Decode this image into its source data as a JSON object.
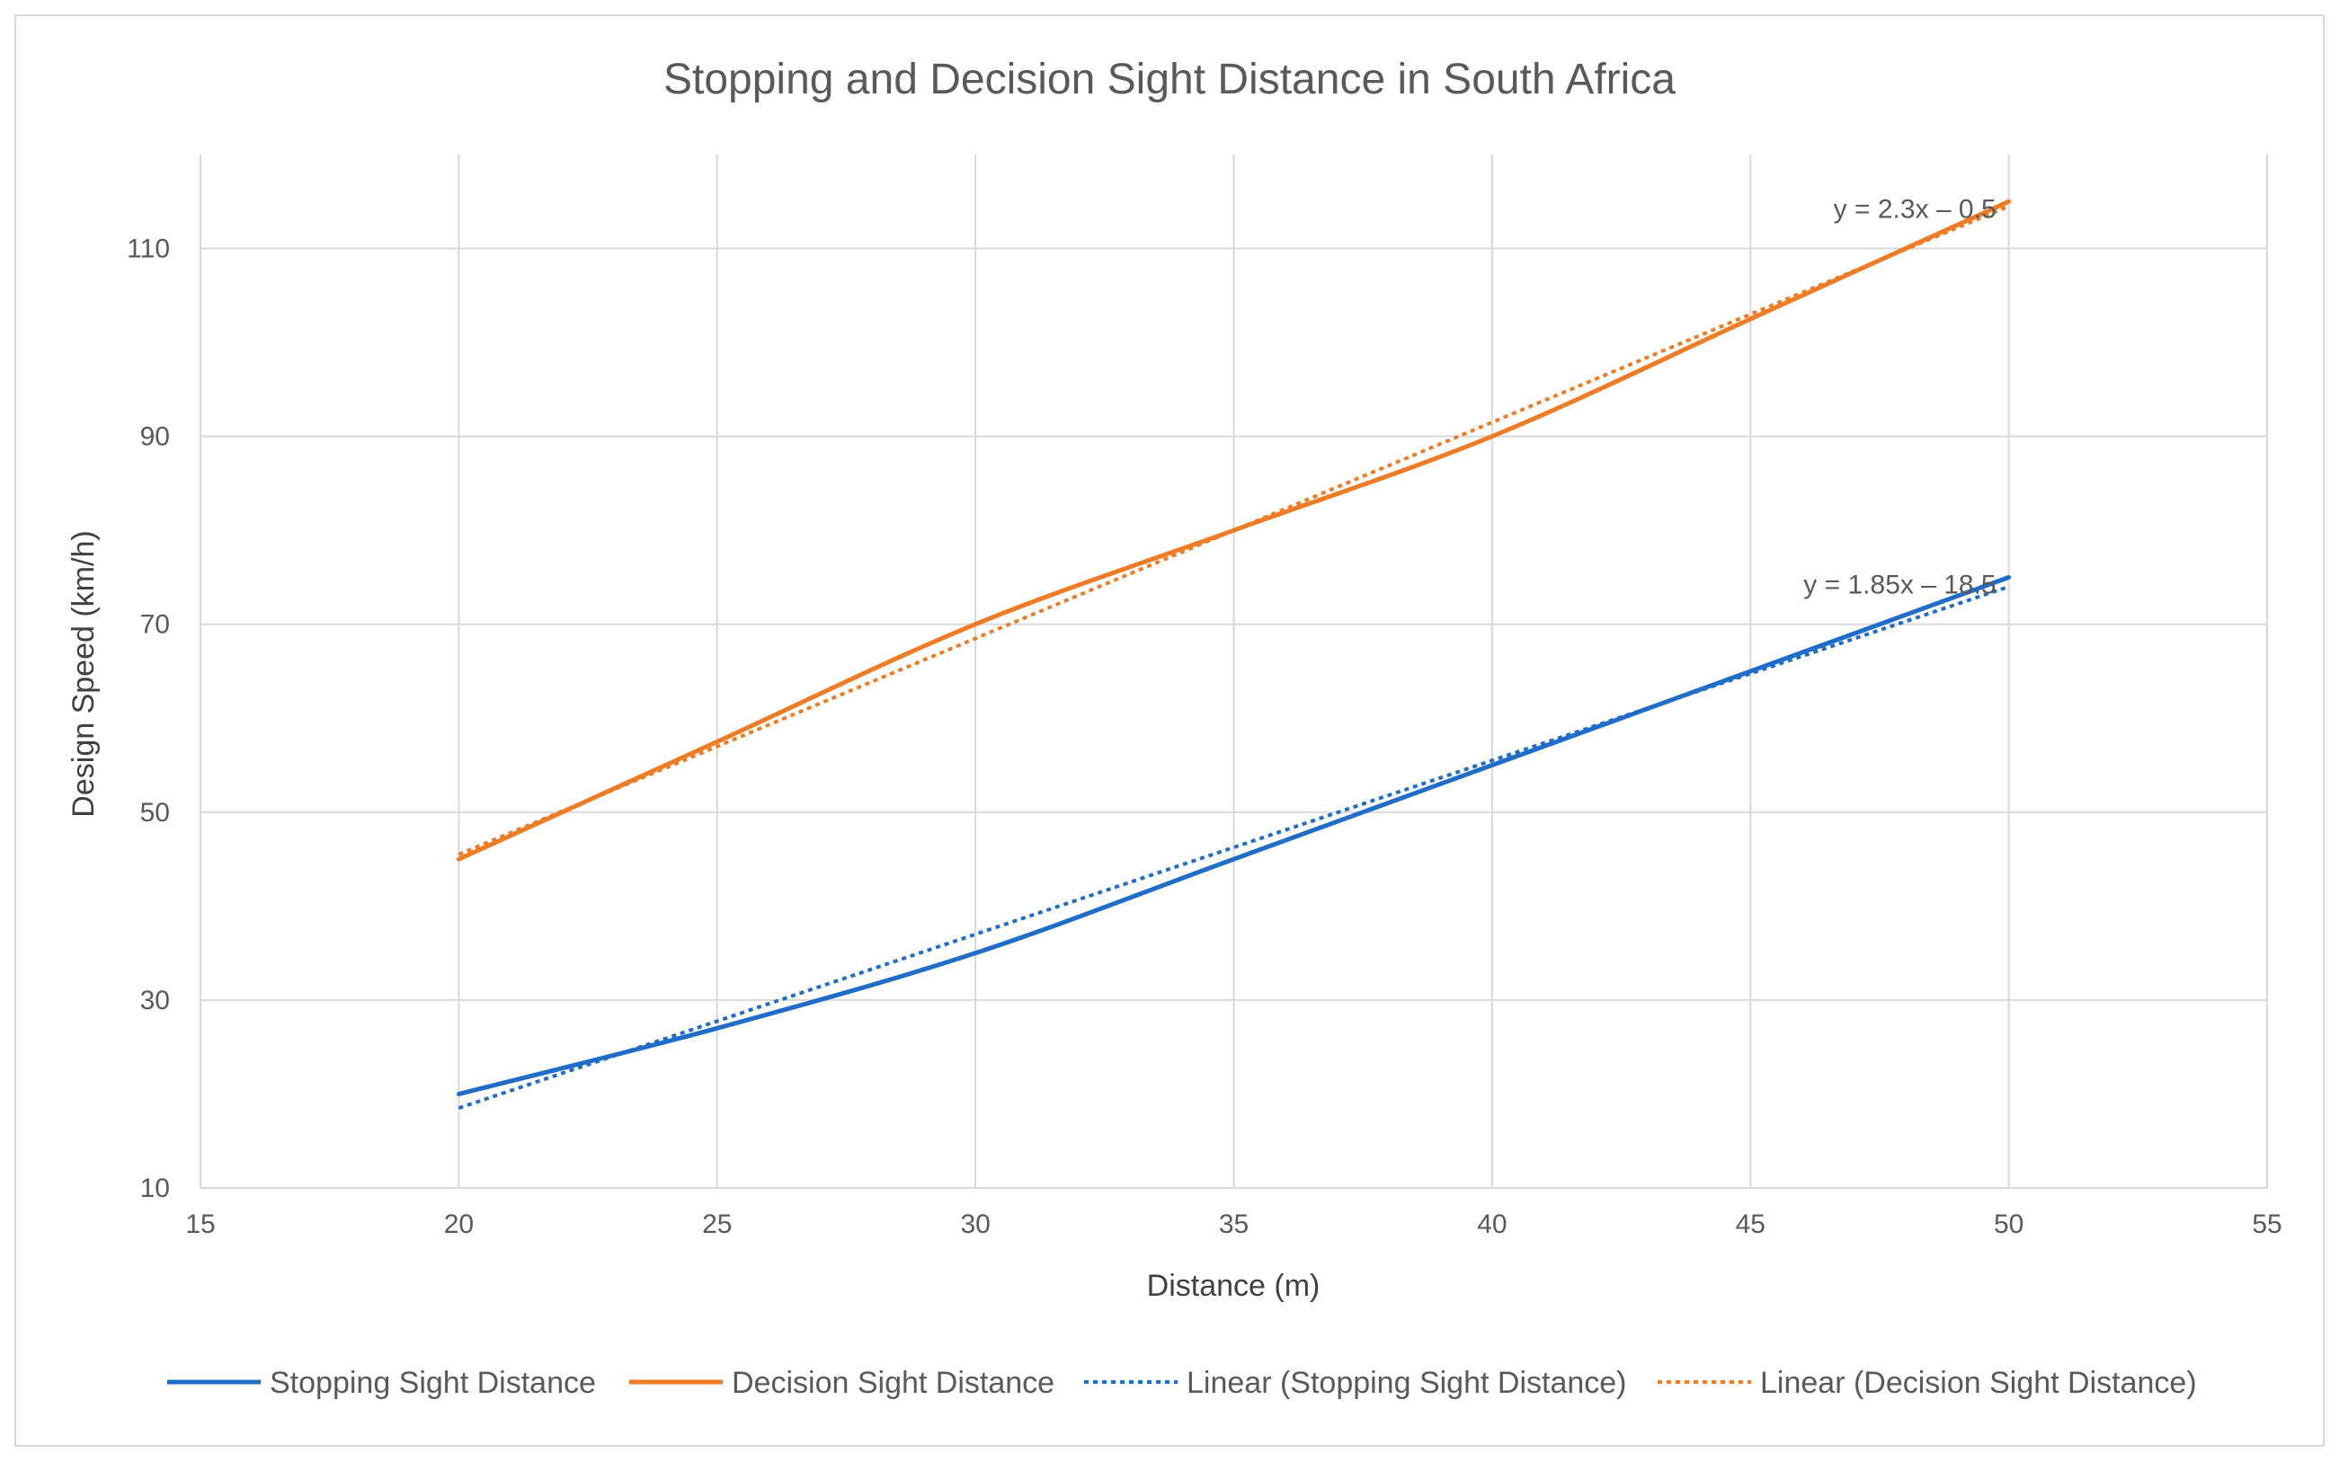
{
  "chart_data": {
    "type": "line",
    "title": "Stopping and Decision Sight Distance in South Africa",
    "xlabel": "Distance (m)",
    "ylabel": "Design Speed (km/h)",
    "xlim": [
      15,
      55
    ],
    "ylim": [
      10,
      120
    ],
    "x_ticks": [
      15,
      20,
      25,
      30,
      35,
      40,
      45,
      50,
      55
    ],
    "y_ticks": [
      10,
      30,
      50,
      70,
      90,
      110
    ],
    "grid": true,
    "legend_position": "bottom",
    "series": [
      {
        "name": "Stopping Sight Distance",
        "style": "solid",
        "color": "#1f6cc9",
        "x": [
          20,
          25,
          30,
          35,
          40,
          45,
          50
        ],
        "y": [
          20,
          27,
          35,
          45,
          55,
          65,
          75
        ]
      },
      {
        "name": "Decision Sight Distance",
        "style": "solid",
        "color": "#f07b25",
        "x": [
          20,
          25,
          30,
          35,
          40,
          45,
          50
        ],
        "y": [
          45,
          57.5,
          70,
          80,
          90,
          102.5,
          115
        ]
      },
      {
        "name": "Linear (Stopping Sight Distance)",
        "style": "dotted",
        "color": "#1f6cc9",
        "trendline": {
          "slope": 1.85,
          "intercept": -18.5
        },
        "x": [
          20,
          50
        ],
        "y": [
          18.5,
          74
        ]
      },
      {
        "name": "Linear (Decision Sight Distance)",
        "style": "dotted",
        "color": "#f07b25",
        "trendline": {
          "slope": 2.3,
          "intercept": -0.5
        },
        "x": [
          20,
          50
        ],
        "y": [
          45.5,
          114.5
        ]
      }
    ],
    "annotations": [
      {
        "text": "y = 2.3x – 0.5",
        "x": 50,
        "y": 115
      },
      {
        "text": "y = 1.85x – 18.5",
        "x": 50,
        "y": 75
      }
    ]
  }
}
